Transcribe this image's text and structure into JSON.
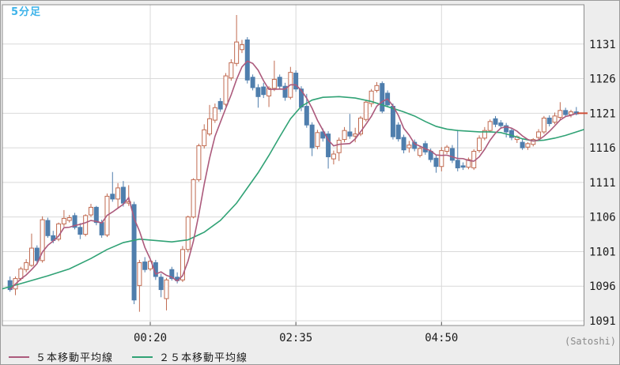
{
  "title": "5分足",
  "unit_note": "(Satoshi)",
  "colors": {
    "title": "#3eb3e9",
    "up_candle": "#c06a50",
    "down_candle": "#4f7ead",
    "ma5": "#ac5a7c",
    "ma25": "#30a275",
    "grid": "#d9d9d9",
    "plot_border": "#8c8c8c",
    "panel_bg": "#ededed",
    "plot_bg": "#ffffff",
    "axis_text": "#1a1a1a",
    "last_price_marker": "#cf4f38"
  },
  "chart_data": {
    "type": "candlestick",
    "title": "5分足",
    "unit_label": "(Satoshi)",
    "grid": true,
    "legend_position": "bottom-left",
    "ylim": [
      1090.3,
      1136.7
    ],
    "y_ticks": [
      1091,
      1096,
      1101,
      1106,
      1111,
      1116,
      1121,
      1126,
      1131
    ],
    "x_ticks": [
      {
        "label": "00:20",
        "index": 26
      },
      {
        "label": "02:35",
        "index": 53
      },
      {
        "label": "04:50",
        "index": 80
      }
    ],
    "last_price": 1121.0,
    "candles": [
      [
        1096.8,
        1097.4,
        1095.2,
        1095.5
      ],
      [
        1095.6,
        1097.4,
        1094.7,
        1097.1
      ],
      [
        1097.1,
        1098.8,
        1096.8,
        1098.5
      ],
      [
        1098.4,
        1099.9,
        1098.0,
        1099.4
      ],
      [
        1099.0,
        1103.6,
        1098.8,
        1101.5
      ],
      [
        1101.5,
        1101.9,
        1099.3,
        1099.7
      ],
      [
        1099.7,
        1106.1,
        1099.4,
        1105.6
      ],
      [
        1105.5,
        1105.9,
        1103.0,
        1103.3
      ],
      [
        1103.3,
        1104.0,
        1102.2,
        1102.6
      ],
      [
        1102.8,
        1105.2,
        1102.5,
        1105.0
      ],
      [
        1105.0,
        1107.0,
        1104.6,
        1105.8
      ],
      [
        1105.5,
        1106.3,
        1105.2,
        1105.9
      ],
      [
        1106.2,
        1106.6,
        1104.2,
        1104.5
      ],
      [
        1104.5,
        1105.1,
        1102.8,
        1103.5
      ],
      [
        1103.5,
        1106.4,
        1103.2,
        1106.2
      ],
      [
        1106.3,
        1107.9,
        1106.0,
        1107.4
      ],
      [
        1107.4,
        1107.6,
        1104.8,
        1105.2
      ],
      [
        1105.2,
        1105.6,
        1103.0,
        1103.4
      ],
      [
        1103.4,
        1109.4,
        1103.1,
        1109.0
      ],
      [
        1109.3,
        1112.5,
        1108.2,
        1108.6
      ],
      [
        1108.6,
        1110.9,
        1107.2,
        1110.2
      ],
      [
        1110.3,
        1111.2,
        1107.5,
        1108.0
      ],
      [
        1108.0,
        1110.6,
        1107.6,
        1108.2
      ],
      [
        1107.8,
        1108.2,
        1093.4,
        1094.0
      ],
      [
        1096.1,
        1099.8,
        1092.3,
        1099.4
      ],
      [
        1099.5,
        1100.2,
        1098.0,
        1098.4
      ],
      [
        1098.5,
        1100.0,
        1098.2,
        1099.6
      ],
      [
        1099.4,
        1099.8,
        1096.9,
        1097.4
      ],
      [
        1097.3,
        1097.8,
        1094.4,
        1095.5
      ],
      [
        1094.2,
        1097.2,
        1092.5,
        1096.9
      ],
      [
        1098.4,
        1098.8,
        1096.8,
        1097.1
      ],
      [
        1097.3,
        1098.0,
        1096.4,
        1096.8
      ],
      [
        1096.9,
        1101.8,
        1096.6,
        1101.3
      ],
      [
        1101.3,
        1106.2,
        1100.9,
        1106.0
      ],
      [
        1106.0,
        1111.6,
        1105.8,
        1111.4
      ],
      [
        1111.4,
        1116.6,
        1111.1,
        1116.3
      ],
      [
        1116.3,
        1119.4,
        1115.9,
        1118.6
      ],
      [
        1118.0,
        1122.2,
        1117.7,
        1120.2
      ],
      [
        1120.0,
        1122.4,
        1119.6,
        1121.8
      ],
      [
        1122.7,
        1123.2,
        1121.2,
        1121.6
      ],
      [
        1122.3,
        1126.8,
        1122.0,
        1126.4
      ],
      [
        1126.1,
        1128.8,
        1125.7,
        1128.3
      ],
      [
        1128.2,
        1135.2,
        1127.8,
        1131.3
      ],
      [
        1130.2,
        1131.6,
        1129.7,
        1130.9
      ],
      [
        1131.6,
        1132.0,
        1125.3,
        1125.8
      ],
      [
        1126.2,
        1126.6,
        1124.3,
        1124.7
      ],
      [
        1124.7,
        1125.2,
        1121.8,
        1123.4
      ],
      [
        1124.8,
        1125.4,
        1123.2,
        1123.7
      ],
      [
        1123.5,
        1124.9,
        1121.9,
        1124.6
      ],
      [
        1124.6,
        1128.6,
        1124.2,
        1125.9
      ],
      [
        1126.2,
        1126.6,
        1124.5,
        1124.9
      ],
      [
        1124.9,
        1125.4,
        1122.8,
        1123.3
      ],
      [
        1123.3,
        1127.7,
        1123.0,
        1126.9
      ],
      [
        1126.8,
        1127.2,
        1124.1,
        1124.5
      ],
      [
        1124.5,
        1124.9,
        1121.3,
        1121.9
      ],
      [
        1122.0,
        1123.8,
        1118.9,
        1119.3
      ],
      [
        1119.3,
        1119.7,
        1114.8,
        1116.0
      ],
      [
        1116.2,
        1118.6,
        1115.8,
        1118.2
      ],
      [
        1118.3,
        1118.8,
        1116.9,
        1117.4
      ],
      [
        1118.0,
        1118.4,
        1113.0,
        1114.7
      ],
      [
        1114.4,
        1115.6,
        1113.6,
        1115.1
      ],
      [
        1115.3,
        1117.5,
        1114.1,
        1117.1
      ],
      [
        1117.2,
        1119.0,
        1116.8,
        1118.5
      ],
      [
        1118.3,
        1120.9,
        1117.3,
        1117.7
      ],
      [
        1117.7,
        1118.9,
        1116.8,
        1118.0
      ],
      [
        1118.0,
        1120.6,
        1117.7,
        1120.3
      ],
      [
        1120.1,
        1122.9,
        1119.8,
        1122.6
      ],
      [
        1122.4,
        1124.5,
        1121.9,
        1124.2
      ],
      [
        1124.3,
        1125.5,
        1124.0,
        1125.0
      ],
      [
        1125.3,
        1125.6,
        1121.0,
        1121.3
      ],
      [
        1123.9,
        1124.3,
        1121.9,
        1122.2
      ],
      [
        1122.0,
        1122.4,
        1117.2,
        1117.6
      ],
      [
        1119.3,
        1119.7,
        1116.9,
        1117.3
      ],
      [
        1117.5,
        1117.9,
        1115.2,
        1115.7
      ],
      [
        1116.0,
        1117.0,
        1115.3,
        1116.4
      ],
      [
        1116.8,
        1117.2,
        1115.5,
        1115.9
      ],
      [
        1114.9,
        1116.2,
        1114.6,
        1115.9
      ],
      [
        1116.6,
        1117.0,
        1115.0,
        1115.4
      ],
      [
        1115.5,
        1115.9,
        1113.9,
        1114.3
      ],
      [
        1114.5,
        1114.9,
        1112.4,
        1113.3
      ],
      [
        1113.3,
        1116.1,
        1112.6,
        1115.6
      ],
      [
        1115.5,
        1116.4,
        1115.1,
        1116.1
      ],
      [
        1115.9,
        1116.4,
        1113.8,
        1114.2
      ],
      [
        1114.2,
        1118.6,
        1112.6,
        1113.1
      ],
      [
        1113.4,
        1113.9,
        1112.8,
        1113.2
      ],
      [
        1113.2,
        1114.6,
        1112.9,
        1114.3
      ],
      [
        1113.1,
        1115.8,
        1112.8,
        1115.5
      ],
      [
        1115.6,
        1117.8,
        1115.3,
        1117.4
      ],
      [
        1117.4,
        1119.0,
        1117.1,
        1118.5
      ],
      [
        1118.5,
        1120.1,
        1118.2,
        1119.8
      ],
      [
        1120.2,
        1120.6,
        1119.0,
        1119.4
      ],
      [
        1119.6,
        1120.0,
        1118.9,
        1119.2
      ],
      [
        1119.2,
        1119.6,
        1117.5,
        1118.3
      ],
      [
        1118.5,
        1118.9,
        1117.1,
        1117.5
      ],
      [
        1117.2,
        1117.8,
        1116.7,
        1117.6
      ],
      [
        1116.8,
        1117.2,
        1115.7,
        1116.0
      ],
      [
        1116.1,
        1116.8,
        1115.7,
        1116.6
      ],
      [
        1116.5,
        1117.4,
        1116.2,
        1117.2
      ],
      [
        1117.5,
        1118.7,
        1117.2,
        1118.3
      ],
      [
        1118.3,
        1120.6,
        1118.0,
        1120.3
      ],
      [
        1120.3,
        1120.7,
        1119.1,
        1119.5
      ],
      [
        1119.7,
        1121.1,
        1119.4,
        1120.6
      ],
      [
        1120.4,
        1122.6,
        1120.1,
        1121.4
      ],
      [
        1121.4,
        1121.8,
        1120.5,
        1120.8
      ],
      [
        1120.8,
        1121.5,
        1120.4,
        1121.2
      ],
      [
        1121.2,
        1121.9,
        1120.7,
        1120.9
      ]
    ],
    "series": [
      {
        "name": "５本移動平均線",
        "kind": "sma_from_closes",
        "period": 5,
        "color": "#ac5a7c"
      },
      {
        "name": "２５本移動平均線",
        "kind": "points",
        "color": "#30a275",
        "points": [
          [
            -1.5,
            1095.6
          ],
          [
            3,
            1096.6
          ],
          [
            7,
            1097.5
          ],
          [
            11,
            1098.5
          ],
          [
            15,
            1100.0
          ],
          [
            18,
            1101.3
          ],
          [
            21,
            1102.3
          ],
          [
            24,
            1102.8
          ],
          [
            27,
            1102.6
          ],
          [
            30,
            1102.4
          ],
          [
            33,
            1102.7
          ],
          [
            36,
            1103.8
          ],
          [
            39,
            1105.5
          ],
          [
            42,
            1108.0
          ],
          [
            44,
            1110.2
          ],
          [
            46,
            1112.4
          ],
          [
            48,
            1114.9
          ],
          [
            50,
            1117.6
          ],
          [
            52,
            1120.2
          ],
          [
            54,
            1122.0
          ],
          [
            56,
            1122.9
          ],
          [
            58,
            1123.3
          ],
          [
            61,
            1123.4
          ],
          [
            64,
            1123.2
          ],
          [
            67,
            1122.7
          ],
          [
            69,
            1122.2
          ],
          [
            71,
            1121.7
          ],
          [
            73,
            1121.2
          ],
          [
            75,
            1120.6
          ],
          [
            77,
            1119.8
          ],
          [
            79,
            1119.1
          ],
          [
            81,
            1118.7
          ],
          [
            83,
            1118.5
          ],
          [
            85,
            1118.4
          ],
          [
            87,
            1118.3
          ],
          [
            89,
            1118.3
          ],
          [
            91,
            1118.2
          ],
          [
            93,
            1117.8
          ],
          [
            95,
            1117.3
          ],
          [
            97,
            1117.0
          ],
          [
            99,
            1117.1
          ],
          [
            101,
            1117.4
          ],
          [
            103,
            1117.8
          ],
          [
            105,
            1118.3
          ],
          [
            107,
            1118.8
          ]
        ]
      }
    ]
  }
}
